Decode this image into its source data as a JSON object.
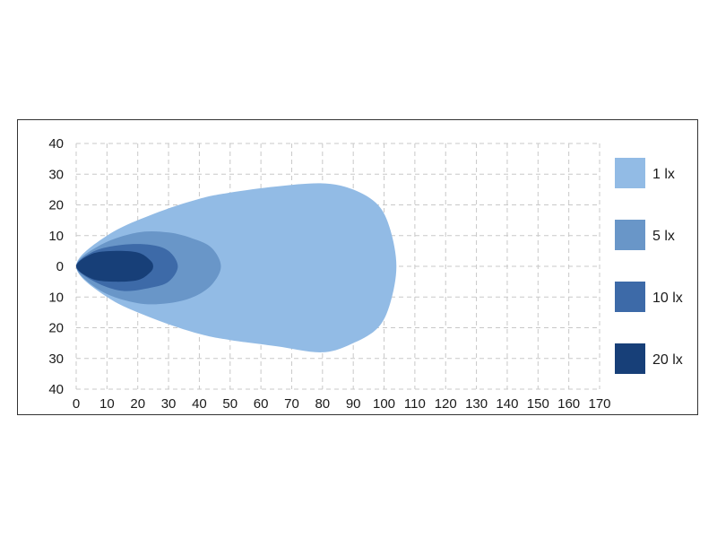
{
  "chart_data": {
    "type": "area",
    "title": "",
    "xlabel": "",
    "ylabel": "",
    "xlim": [
      0,
      170
    ],
    "ylim": [
      -40,
      40
    ],
    "x_ticks": [
      0,
      10,
      20,
      30,
      40,
      50,
      60,
      70,
      80,
      90,
      100,
      110,
      120,
      130,
      140,
      150,
      160,
      170
    ],
    "y_ticks": [
      40,
      30,
      20,
      10,
      0,
      -10,
      -20,
      -30,
      -40
    ],
    "y_tick_labels": [
      "40",
      "30",
      "20",
      "10",
      "0",
      "10",
      "20",
      "30",
      "40"
    ],
    "grid": true,
    "legend_position": "right",
    "series": [
      {
        "name": "1 lx",
        "color": "#92bbe5",
        "outline": [
          [
            0,
            0
          ],
          [
            10,
            10
          ],
          [
            25,
            17
          ],
          [
            40,
            22
          ],
          [
            50,
            24
          ],
          [
            65,
            26
          ],
          [
            80,
            27
          ],
          [
            90,
            25
          ],
          [
            98,
            20
          ],
          [
            102,
            12
          ],
          [
            104,
            0
          ],
          [
            102,
            -12
          ],
          [
            98,
            -20
          ],
          [
            90,
            -25
          ],
          [
            80,
            -28
          ],
          [
            65,
            -26
          ],
          [
            50,
            -24
          ],
          [
            40,
            -22
          ],
          [
            25,
            -17
          ],
          [
            10,
            -10
          ]
        ]
      },
      {
        "name": "5 lx",
        "color": "#6996c8",
        "outline": [
          [
            0,
            0
          ],
          [
            8,
            7
          ],
          [
            20,
            11
          ],
          [
            30,
            11
          ],
          [
            38,
            9
          ],
          [
            44,
            6
          ],
          [
            47,
            0
          ],
          [
            44,
            -6
          ],
          [
            38,
            -10
          ],
          [
            30,
            -12
          ],
          [
            20,
            -12
          ],
          [
            8,
            -8
          ]
        ]
      },
      {
        "name": "10 lx",
        "color": "#3d6aa8",
        "outline": [
          [
            0,
            0
          ],
          [
            6,
            5
          ],
          [
            15,
            7
          ],
          [
            24,
            7
          ],
          [
            30,
            5
          ],
          [
            33,
            0
          ],
          [
            30,
            -5
          ],
          [
            24,
            -7
          ],
          [
            15,
            -8
          ],
          [
            6,
            -5
          ]
        ]
      },
      {
        "name": "20 lx",
        "color": "#173f78",
        "outline": [
          [
            0,
            0
          ],
          [
            5,
            4
          ],
          [
            12,
            5
          ],
          [
            20,
            4.5
          ],
          [
            24,
            2
          ],
          [
            25,
            0
          ],
          [
            24,
            -2
          ],
          [
            20,
            -4.5
          ],
          [
            12,
            -5
          ],
          [
            5,
            -4
          ]
        ]
      }
    ]
  }
}
